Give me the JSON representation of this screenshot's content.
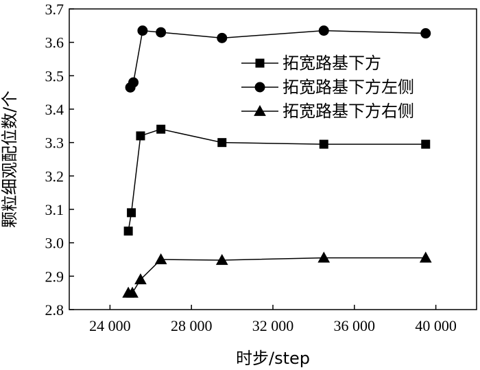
{
  "chart_data": {
    "type": "line",
    "xlabel": "时步/step",
    "ylabel": "颗粒细观配位数/个",
    "xlim": [
      22000,
      42000
    ],
    "ylim": [
      2.8,
      3.7
    ],
    "xticks": [
      24000,
      28000,
      32000,
      36000,
      40000
    ],
    "xtick_labels": [
      "24 000",
      "28 000",
      "32 000",
      "36 000",
      "40 000"
    ],
    "yticks": [
      2.8,
      2.9,
      3.0,
      3.1,
      3.2,
      3.3,
      3.4,
      3.5,
      3.6,
      3.7
    ],
    "ytick_labels": [
      "2.8",
      "2.9",
      "3.0",
      "3.1",
      "3.2",
      "3.3",
      "3.4",
      "3.5",
      "3.6",
      "3.7"
    ],
    "grid": false,
    "legend_position": "top-right",
    "series": [
      {
        "name": "拓宽路基下方",
        "marker": "square",
        "x": [
          24900,
          25050,
          25500,
          26500,
          29500,
          34500,
          39500
        ],
        "y": [
          3.035,
          3.09,
          3.32,
          3.34,
          3.3,
          3.295,
          3.295
        ]
      },
      {
        "name": "拓宽路基下方左侧",
        "marker": "circle",
        "x": [
          25000,
          25150,
          25600,
          26500,
          29500,
          34500,
          39500
        ],
        "y": [
          3.465,
          3.48,
          3.635,
          3.63,
          3.613,
          3.635,
          3.627
        ]
      },
      {
        "name": "拓宽路基下方右侧",
        "marker": "triangle",
        "x": [
          24900,
          25100,
          25500,
          26500,
          29500,
          34500,
          39500
        ],
        "y": [
          2.85,
          2.85,
          2.89,
          2.95,
          2.948,
          2.955,
          2.955
        ]
      }
    ],
    "colors": {
      "line": "#000000",
      "marker": "#000000"
    }
  }
}
